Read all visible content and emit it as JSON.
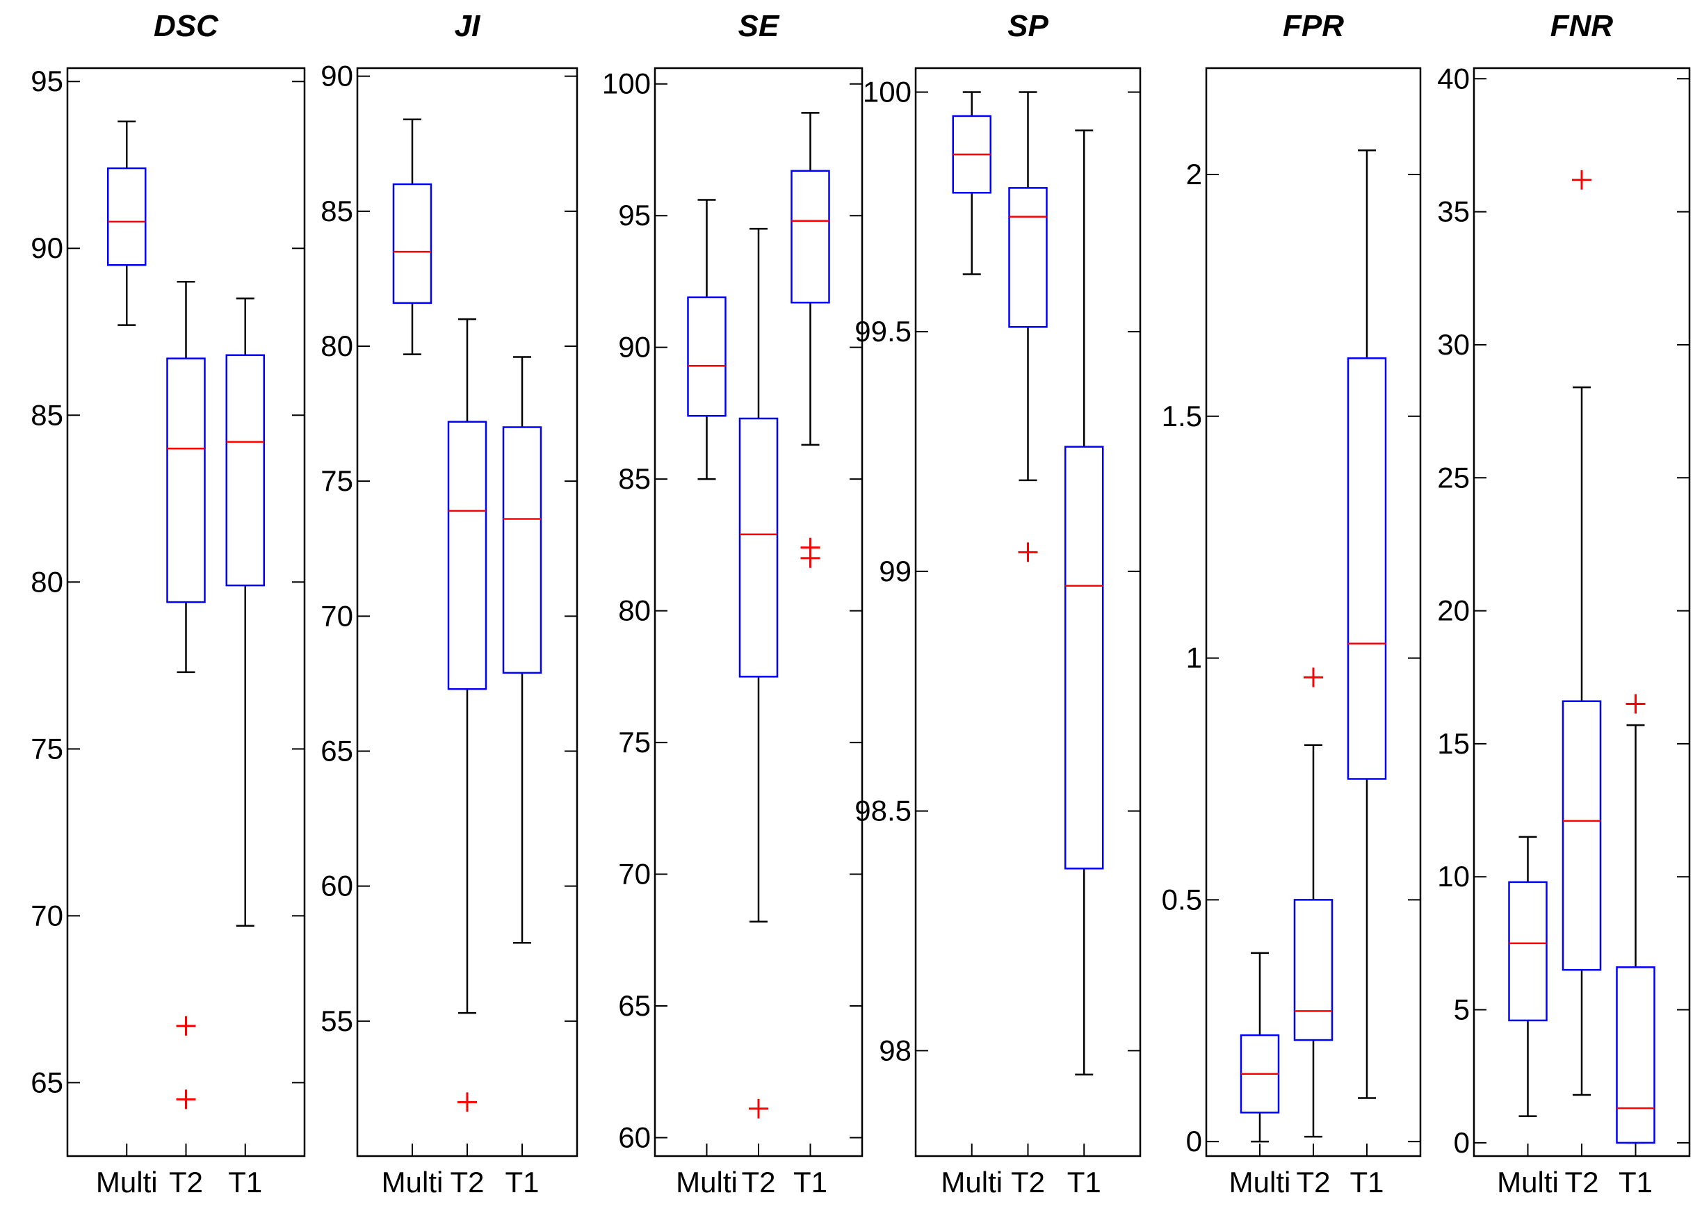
{
  "figure": {
    "type": "boxplot-panels"
  },
  "colors": {
    "box": "#0000ff",
    "median": "#ff0000",
    "whisker": "#000000",
    "outlier": "#ff0000",
    "axis": "#000000"
  },
  "chart_data": [
    {
      "type": "boxplot",
      "title": "DSC",
      "categories": [
        "Multi",
        "T2",
        "T1"
      ],
      "ylim": [
        62.8,
        95.4
      ],
      "yticks": [
        65,
        70,
        75,
        80,
        85,
        90,
        95
      ],
      "tick_labels": [
        "65",
        "70",
        "75",
        "80",
        "85",
        "90",
        "95"
      ],
      "boxes": [
        {
          "q1": 89.5,
          "median": 90.8,
          "q3": 92.4,
          "whisker_low": 87.7,
          "whisker_high": 93.8,
          "outliers": []
        },
        {
          "q1": 79.4,
          "median": 84.0,
          "q3": 86.7,
          "whisker_low": 77.3,
          "whisker_high": 89.0,
          "outliers": [
            66.7,
            64.5
          ]
        },
        {
          "q1": 79.9,
          "median": 84.2,
          "q3": 86.8,
          "whisker_low": 69.7,
          "whisker_high": 88.5,
          "outliers": []
        }
      ]
    },
    {
      "type": "boxplot",
      "title": "JI",
      "categories": [
        "Multi",
        "T2",
        "T1"
      ],
      "ylim": [
        50.0,
        90.3
      ],
      "yticks": [
        55,
        60,
        65,
        70,
        75,
        80,
        85,
        90
      ],
      "tick_labels": [
        "55",
        "60",
        "65",
        "70",
        "75",
        "80",
        "85",
        "90"
      ],
      "boxes": [
        {
          "q1": 81.6,
          "median": 83.5,
          "q3": 86.0,
          "whisker_low": 79.7,
          "whisker_high": 88.4,
          "outliers": []
        },
        {
          "q1": 67.3,
          "median": 73.9,
          "q3": 77.2,
          "whisker_low": 55.3,
          "whisker_high": 81.0,
          "outliers": [
            52.0
          ]
        },
        {
          "q1": 67.9,
          "median": 73.6,
          "q3": 77.0,
          "whisker_low": 57.9,
          "whisker_high": 79.6,
          "outliers": []
        }
      ]
    },
    {
      "type": "boxplot",
      "title": "SE",
      "categories": [
        "Multi",
        "T2",
        "T1"
      ],
      "ylim": [
        59.3,
        100.6
      ],
      "yticks": [
        60,
        65,
        70,
        75,
        80,
        85,
        90,
        95,
        100
      ],
      "tick_labels": [
        "60",
        "65",
        "70",
        "75",
        "80",
        "85",
        "90",
        "95",
        "100"
      ],
      "boxes": [
        {
          "q1": 87.4,
          "median": 89.3,
          "q3": 91.9,
          "whisker_low": 85.0,
          "whisker_high": 95.6,
          "outliers": []
        },
        {
          "q1": 77.5,
          "median": 82.9,
          "q3": 87.3,
          "whisker_low": 68.2,
          "whisker_high": 94.5,
          "outliers": [
            61.1
          ]
        },
        {
          "q1": 91.7,
          "median": 94.8,
          "q3": 96.7,
          "whisker_low": 86.3,
          "whisker_high": 98.9,
          "outliers": [
            82.4,
            82.0
          ]
        }
      ]
    },
    {
      "type": "boxplot",
      "title": "SP",
      "categories": [
        "Multi",
        "T2",
        "T1"
      ],
      "ylim": [
        97.78,
        100.05
      ],
      "yticks": [
        98,
        98.5,
        99,
        99.5,
        100
      ],
      "tick_labels": [
        "98",
        "98.5",
        "99",
        "99.5",
        "100"
      ],
      "boxes": [
        {
          "q1": 99.79,
          "median": 99.87,
          "q3": 99.95,
          "whisker_low": 99.62,
          "whisker_high": 100.0,
          "outliers": []
        },
        {
          "q1": 99.51,
          "median": 99.74,
          "q3": 99.8,
          "whisker_low": 99.19,
          "whisker_high": 100.0,
          "outliers": [
            99.04
          ]
        },
        {
          "q1": 98.38,
          "median": 98.97,
          "q3": 99.26,
          "whisker_low": 97.95,
          "whisker_high": 99.92,
          "outliers": []
        }
      ]
    },
    {
      "type": "boxplot",
      "title": "FPR",
      "categories": [
        "Multi",
        "T2",
        "T1"
      ],
      "ylim": [
        -0.03,
        2.22
      ],
      "yticks": [
        0,
        0.5,
        1,
        1.5,
        2
      ],
      "tick_labels": [
        "0",
        "0.5",
        "1",
        "1.5",
        "2"
      ],
      "boxes": [
        {
          "q1": 0.06,
          "median": 0.14,
          "q3": 0.22,
          "whisker_low": 0.0,
          "whisker_high": 0.39,
          "outliers": []
        },
        {
          "q1": 0.21,
          "median": 0.27,
          "q3": 0.5,
          "whisker_low": 0.01,
          "whisker_high": 0.82,
          "outliers": [
            0.96
          ]
        },
        {
          "q1": 0.75,
          "median": 1.03,
          "q3": 1.62,
          "whisker_low": 0.09,
          "whisker_high": 2.05,
          "outliers": []
        }
      ]
    },
    {
      "type": "boxplot",
      "title": "FNR",
      "categories": [
        "Multi",
        "T2",
        "T1"
      ],
      "ylim": [
        -0.5,
        40.4
      ],
      "yticks": [
        0,
        5,
        10,
        15,
        20,
        25,
        30,
        35,
        40
      ],
      "tick_labels": [
        "0",
        "5",
        "10",
        "15",
        "20",
        "25",
        "30",
        "35",
        "40"
      ],
      "boxes": [
        {
          "q1": 4.6,
          "median": 7.5,
          "q3": 9.8,
          "whisker_low": 1.0,
          "whisker_high": 11.5,
          "outliers": []
        },
        {
          "q1": 6.5,
          "median": 12.1,
          "q3": 16.6,
          "whisker_low": 1.8,
          "whisker_high": 28.4,
          "outliers": [
            36.2
          ]
        },
        {
          "q1": 0.0,
          "median": 1.3,
          "q3": 6.6,
          "whisker_low": 0.0,
          "whisker_high": 15.7,
          "outliers": [
            16.5
          ]
        }
      ]
    }
  ]
}
